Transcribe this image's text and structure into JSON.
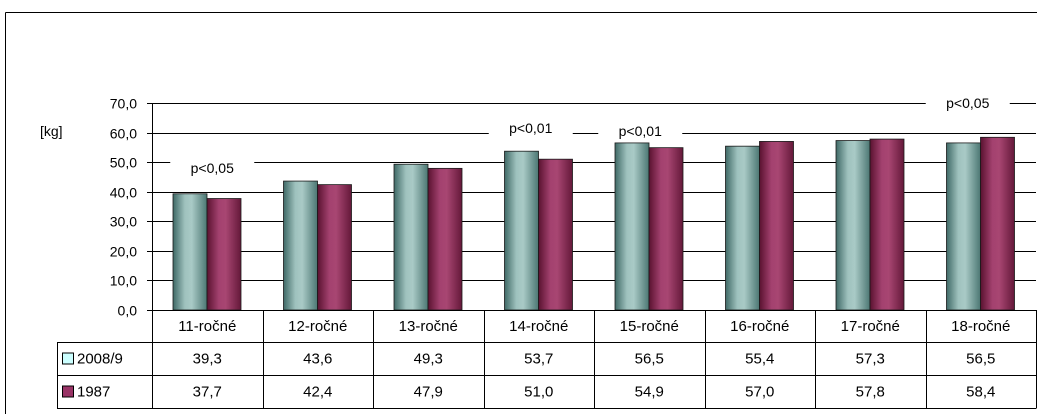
{
  "chart_data": {
    "type": "bar",
    "categories": [
      "11-ročné",
      "12-ročné",
      "13-ročné",
      "14-ročné",
      "15-ročné",
      "16-ročné",
      "17-ročné",
      "18-ročné"
    ],
    "series": [
      {
        "name": "2008/9",
        "values": [
          39.3,
          43.6,
          49.3,
          53.7,
          56.5,
          55.4,
          57.3,
          56.5
        ],
        "color": "#ccffff"
      },
      {
        "name": "1987",
        "values": [
          37.7,
          42.4,
          47.9,
          51.0,
          54.9,
          57.0,
          57.8,
          58.4
        ],
        "color": "#993366"
      }
    ],
    "ylabel": "[kg]",
    "ylim": [
      0,
      70
    ],
    "yticks": [
      "0,0",
      "10,0",
      "20,0",
      "30,0",
      "40,0",
      "50,0",
      "60,0",
      "70,0"
    ],
    "grid": true,
    "legend": "in data table",
    "data_table": true,
    "annotations": [
      {
        "text": "p<0,05",
        "category": "11-ročné"
      },
      {
        "text": "p<0,01",
        "category": "14-ročné"
      },
      {
        "text": "p<0,01",
        "category": "15-ročné"
      },
      {
        "text": "p<0,05",
        "category": "18-ročné"
      }
    ]
  }
}
